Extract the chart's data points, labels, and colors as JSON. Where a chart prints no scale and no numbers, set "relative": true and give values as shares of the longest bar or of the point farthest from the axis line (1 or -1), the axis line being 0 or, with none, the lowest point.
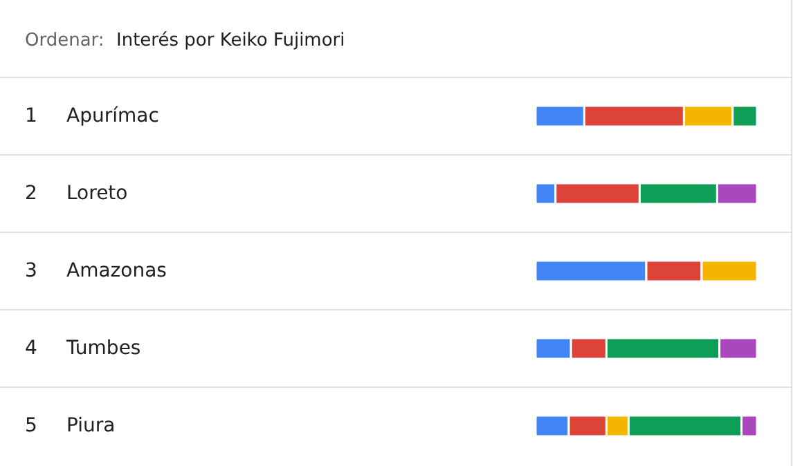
{
  "chart_data": {
    "type": "bar",
    "orientation": "horizontal",
    "stacked": true,
    "relative": true,
    "title": "Interés por Keiko Fujimori",
    "annotations": [
      "Ordenar:",
      "1",
      "2",
      "3",
      "4",
      "5"
    ],
    "categories": [
      "Apurímac",
      "Loreto",
      "Amazonas",
      "Tumbes",
      "Piura"
    ],
    "series": [
      {
        "color": "#4285f4",
        "values": [
          0.22,
          0.09,
          0.5,
          0.16,
          0.15
        ]
      },
      {
        "color": "#db4437",
        "values": [
          0.45,
          0.38,
          0.25,
          0.16,
          0.17
        ]
      },
      {
        "color": "#f4b400",
        "values": [
          0.22,
          null,
          0.25,
          null,
          0.1
        ]
      },
      {
        "color": "#0f9d58",
        "values": [
          0.11,
          0.35,
          null,
          0.51,
          0.51
        ]
      },
      {
        "color": "#ab47bc",
        "values": [
          null,
          0.18,
          null,
          0.17,
          0.07
        ]
      }
    ]
  }
}
